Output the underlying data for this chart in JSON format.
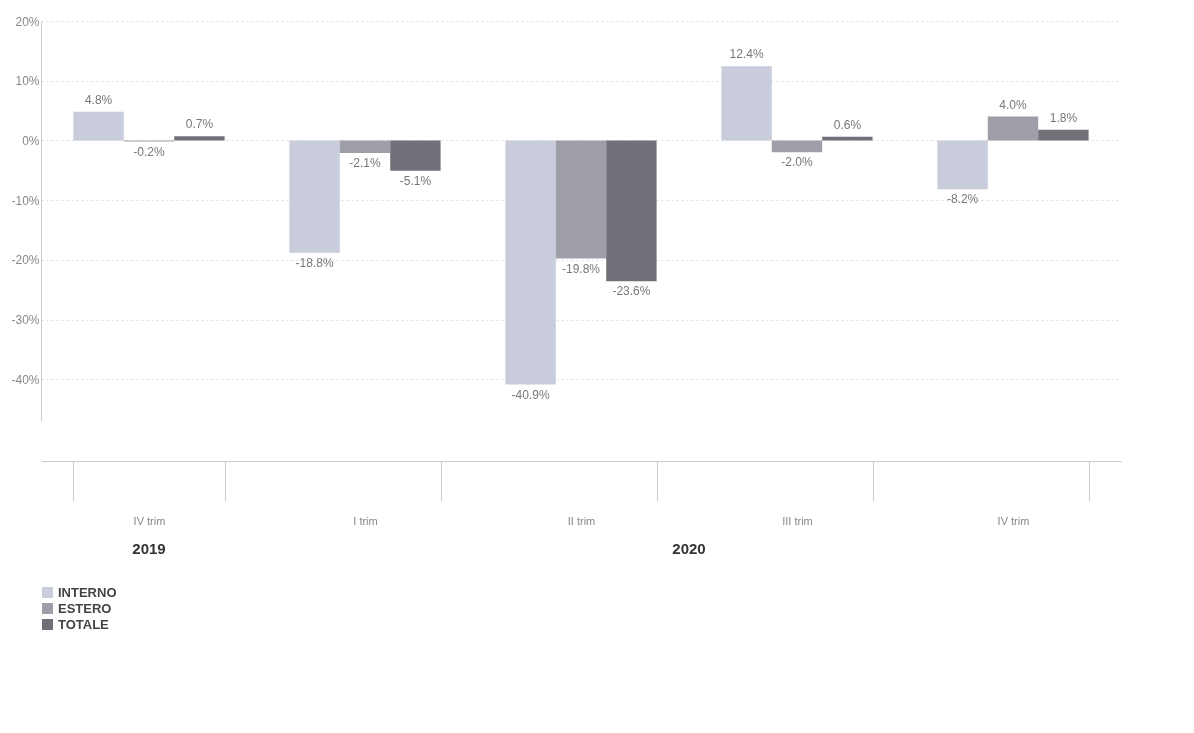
{
  "chart_data": {
    "type": "bar",
    "categories": [
      "IV trim",
      "I trim",
      "II trim",
      "III trim",
      "IV trim"
    ],
    "series": [
      {
        "name": "INTERNO",
        "color": "#c9ccdb",
        "values": [
          4.8,
          -18.8,
          -40.9,
          12.4,
          -8.2
        ],
        "value_labels": [
          "4.8%",
          "-18.8%",
          "-40.9%",
          "12.4%",
          "-8.2%"
        ]
      },
      {
        "name": "ESTERO",
        "color": "#9d9ea8",
        "values": [
          -0.2,
          -2.1,
          -19.8,
          -2.0,
          4.0
        ],
        "value_labels": [
          "-0.2%",
          "-2.1%",
          "-19.8%",
          "-2.0%",
          "4.0%"
        ]
      },
      {
        "name": "TOTALE",
        "color": "#707178",
        "values": [
          0.7,
          -5.1,
          -23.6,
          0.6,
          1.8
        ],
        "value_labels": [
          "0.7%",
          "-5.1%",
          "-23.6%",
          "0.6%",
          "1.8%"
        ]
      }
    ],
    "ylim": [
      -47,
      20
    ],
    "yticks": [
      {
        "value": 20,
        "label": "20%"
      },
      {
        "value": 10,
        "label": "10%"
      },
      {
        "value": 0,
        "label": "0%"
      },
      {
        "value": -10,
        "label": "-10%"
      },
      {
        "value": -20,
        "label": "-20%"
      },
      {
        "value": -30,
        "label": "-30%"
      },
      {
        "value": -40,
        "label": "-40%"
      }
    ],
    "annotations": [
      "2019",
      "2020"
    ],
    "grid": "y",
    "legend": "bottom left"
  }
}
